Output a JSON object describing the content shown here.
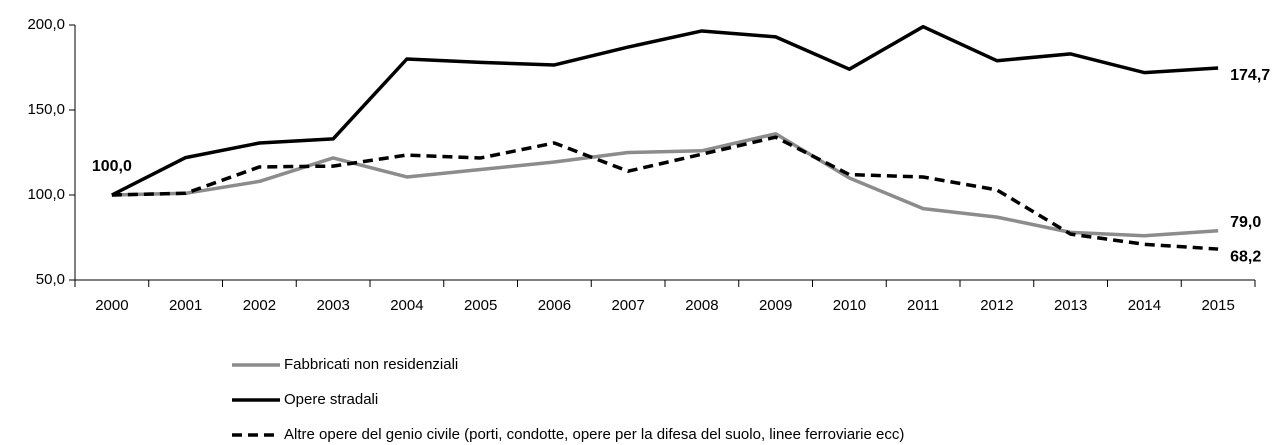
{
  "chart_data": {
    "type": "line",
    "categories": [
      "2000",
      "2001",
      "2002",
      "2003",
      "2004",
      "2005",
      "2006",
      "2007",
      "2008",
      "2009",
      "2010",
      "2011",
      "2012",
      "2013",
      "2014",
      "2015"
    ],
    "series": [
      {
        "name": "Fabbricati non residenziali",
        "color": "#8c8c8c",
        "line_style": "solid",
        "values": [
          100,
          101,
          108,
          121.8,
          110.6,
          115,
          119.4,
          125,
          126,
          136,
          110,
          92,
          87,
          78,
          76,
          79
        ],
        "value_labels": [
          null,
          null,
          null,
          null,
          null,
          null,
          null,
          null,
          null,
          null,
          null,
          null,
          null,
          null,
          null,
          "79,0"
        ]
      },
      {
        "name": "Opere stradali",
        "color": "#000000",
        "line_style": "solid",
        "values": [
          100,
          122,
          130.6,
          133,
          180,
          178,
          176.5,
          187,
          196.5,
          193,
          174,
          199,
          179,
          183,
          172,
          174.7
        ],
        "value_labels": [
          "100,0",
          null,
          null,
          null,
          null,
          null,
          null,
          null,
          null,
          null,
          null,
          null,
          null,
          null,
          null,
          "174,7"
        ]
      },
      {
        "name": "Altre opere del genio civile (porti, condotte, opere per la difesa del suolo, linee ferroviarie ecc)",
        "color": "#000000",
        "line_style": "dashed",
        "values": [
          100,
          101,
          116.5,
          117,
          123.5,
          121.8,
          130.6,
          114,
          124,
          134,
          112,
          110.6,
          103,
          77,
          71,
          68.2
        ],
        "value_labels": [
          null,
          null,
          null,
          null,
          null,
          null,
          null,
          null,
          null,
          null,
          null,
          null,
          null,
          null,
          null,
          "68,2"
        ]
      }
    ],
    "ylim": [
      50,
      200
    ],
    "yticks": [
      {
        "value": 50,
        "label": "50,0"
      },
      {
        "value": 100,
        "label": "100,0"
      },
      {
        "value": 150,
        "label": "150,0"
      },
      {
        "value": 200,
        "label": "200,0"
      }
    ],
    "grid": false
  }
}
